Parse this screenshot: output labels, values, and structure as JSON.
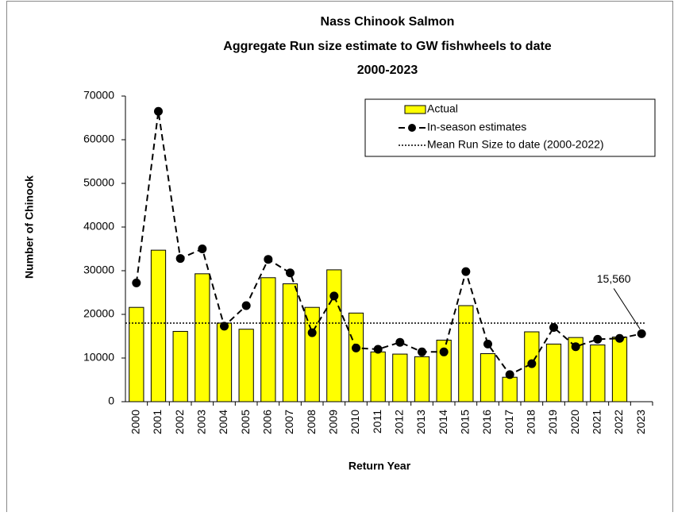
{
  "chart_data": {
    "type": "bar+line",
    "title": [
      "Nass Chinook Salmon",
      "Aggregate Run size estimate to GW fishwheels to date",
      "2000-2023"
    ],
    "x_label": "Return Year",
    "y_label": "Number of Chinook",
    "categories": [
      "2000",
      "2001",
      "2002",
      "2003",
      "2004",
      "2005",
      "2006",
      "2007",
      "2008",
      "2009",
      "2010",
      "2011",
      "2012",
      "2013",
      "2014",
      "2015",
      "2016",
      "2017",
      "2018",
      "2019",
      "2020",
      "2021",
      "2022",
      "2023"
    ],
    "series": [
      {
        "name": "Actual",
        "type": "bar",
        "color": "#ffff00",
        "values": [
          21600,
          34700,
          16100,
          29300,
          18000,
          16600,
          28400,
          27000,
          21600,
          30200,
          20300,
          11400,
          10900,
          10300,
          14100,
          22000,
          11000,
          5600,
          16000,
          13200,
          14700,
          13000,
          14800,
          null
        ]
      },
      {
        "name": "In-season estimates",
        "type": "line",
        "color": "#000000",
        "values": [
          27200,
          66500,
          32800,
          35000,
          17300,
          22000,
          32600,
          29500,
          15800,
          24200,
          12300,
          12000,
          13600,
          11400,
          11400,
          29800,
          13200,
          6200,
          8700,
          17000,
          12600,
          14300,
          14500,
          15560
        ]
      },
      {
        "name": "Mean Run Size to date (2000-2022)",
        "type": "hline",
        "color": "#000000",
        "value": 18000
      }
    ],
    "annotations": [
      {
        "text": "15,560",
        "value": 15560,
        "category": "2023"
      }
    ],
    "ylim": [
      0,
      70000
    ],
    "yticks": [
      0,
      10000,
      20000,
      30000,
      40000,
      50000,
      60000,
      70000
    ],
    "legend": "top-right"
  }
}
